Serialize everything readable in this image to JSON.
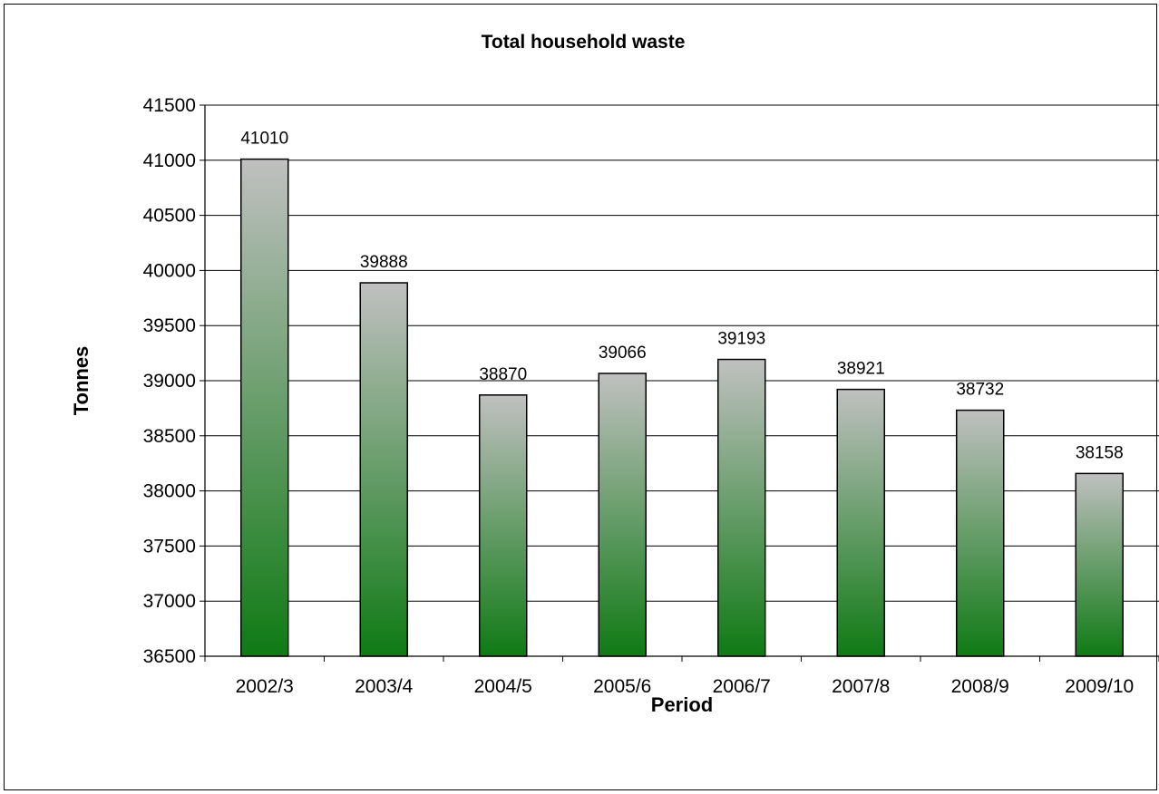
{
  "chart_data": {
    "type": "bar",
    "title": "Total household waste",
    "xlabel": "Period",
    "ylabel": "Tonnes",
    "categories": [
      "2002/3",
      "2003/4",
      "2004/5",
      "2005/6",
      "2006/7",
      "2007/8",
      "2008/9",
      "2009/10"
    ],
    "values": [
      41010,
      39888,
      38870,
      39066,
      39193,
      38921,
      38732,
      38158
    ],
    "data_labels": [
      "41010",
      "39888",
      "38870",
      "39066",
      "39193",
      "38921",
      "38732",
      "38158"
    ],
    "ylim": [
      36500,
      41500
    ],
    "y_ticks": [
      "36500",
      "37000",
      "37500",
      "38000",
      "38500",
      "39000",
      "39500",
      "40000",
      "40500",
      "41000",
      "41500"
    ],
    "grid": "horizontal",
    "legend": "none",
    "bar_gradient": [
      "#c0c0c0",
      "#0f7a14"
    ]
  }
}
